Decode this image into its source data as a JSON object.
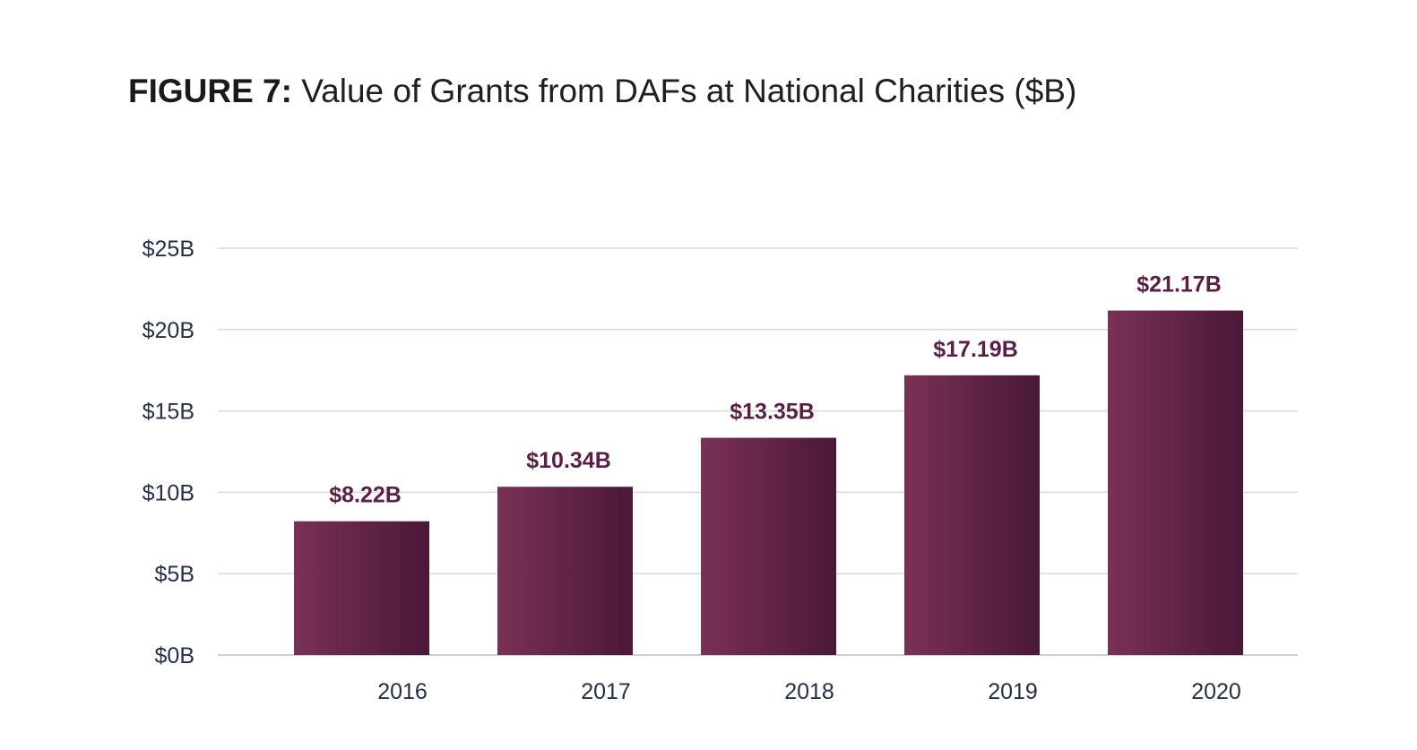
{
  "title": {
    "lead": "FIGURE 7:",
    "text": "Value of Grants from DAFs at National Charities ($B)"
  },
  "chart_data": {
    "type": "bar",
    "categories": [
      "2016",
      "2017",
      "2018",
      "2019",
      "2020"
    ],
    "values": [
      8.22,
      10.34,
      13.35,
      17.19,
      21.17
    ],
    "data_labels": [
      "$8.22B",
      "$10.34B",
      "$13.35B",
      "$17.19B",
      "$21.17B"
    ],
    "yticks": [
      0,
      5,
      10,
      15,
      20,
      25
    ],
    "ytick_labels": [
      "$0B",
      "$5B",
      "$10B",
      "$15B",
      "$20B",
      "$25B"
    ],
    "ylim": [
      0,
      25
    ],
    "grid": true,
    "legend": "none",
    "colors": {
      "bar_start": "#7a3156",
      "bar_end": "#4a1838",
      "label": "#5a1f46",
      "grid": "#d9d9d9",
      "axis": "#cfcfcf"
    }
  }
}
